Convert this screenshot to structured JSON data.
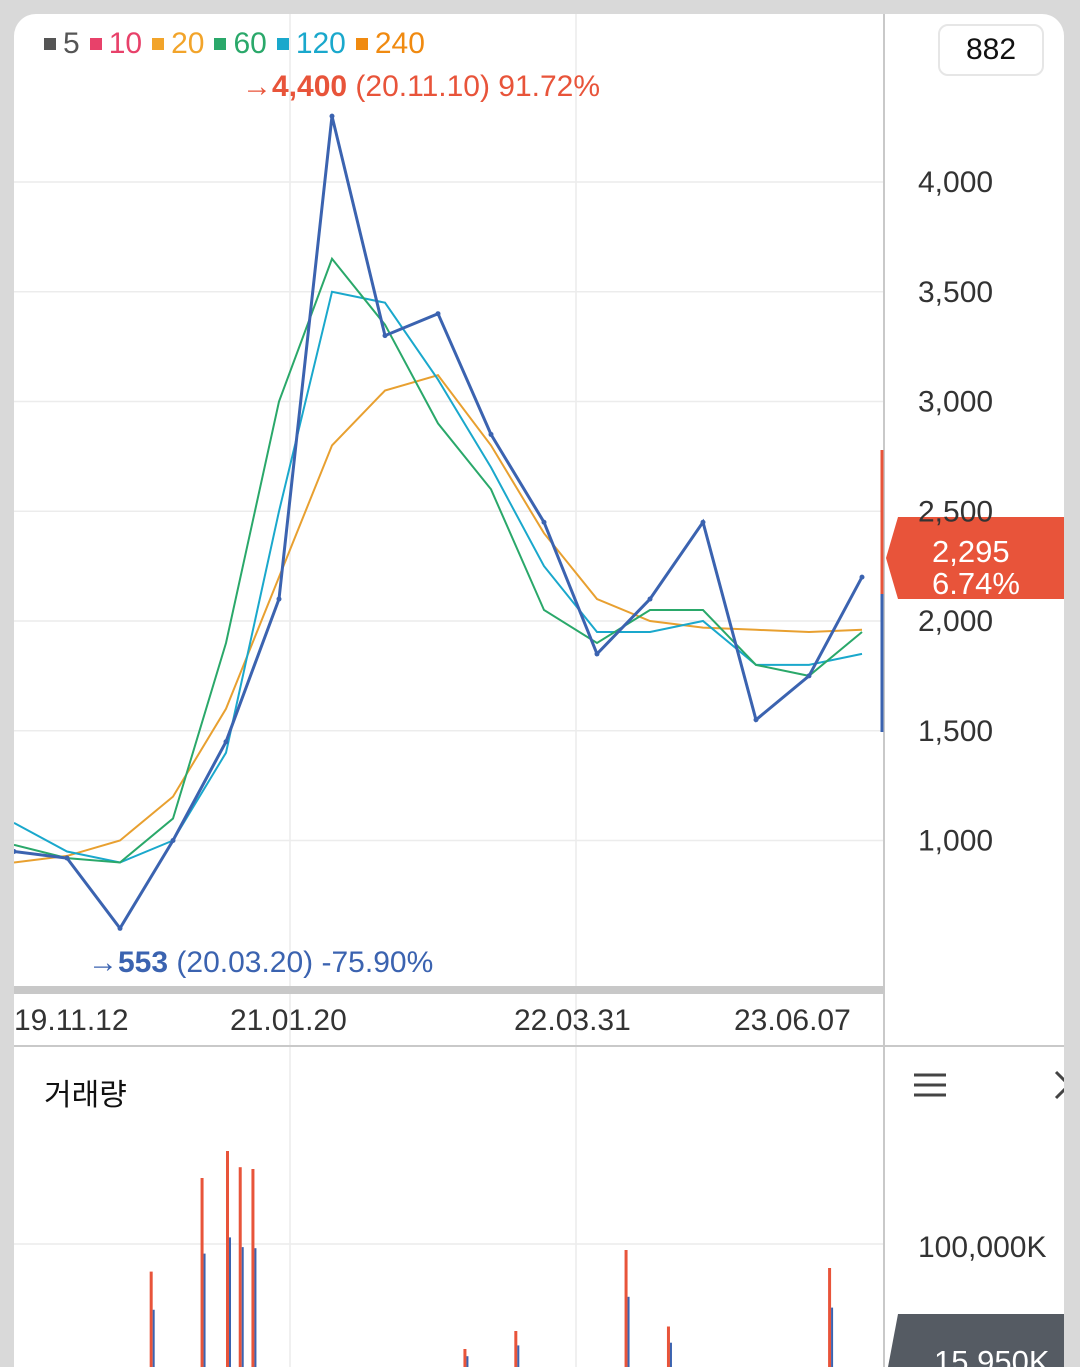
{
  "legend": [
    {
      "label": "5",
      "color": "#555555"
    },
    {
      "label": "10",
      "color": "#e8416a"
    },
    {
      "label": "20",
      "color": "#f2a42a"
    },
    {
      "label": "60",
      "color": "#2aa86a"
    },
    {
      "label": "120",
      "color": "#1aa8cc"
    },
    {
      "label": "240",
      "color": "#f08a10"
    }
  ],
  "count_box": "882",
  "high_marker": {
    "arrow": "→",
    "value": "4,400",
    "detail": "(20.11.10) 91.72%"
  },
  "low_marker": {
    "arrow": "→",
    "value": "553",
    "detail": "(20.03.20) -75.90%"
  },
  "current_price": {
    "price": "2,295",
    "change": "6.74%",
    "color": "#e8543a"
  },
  "volume_panel": {
    "title": "거래량",
    "axis_label": "100,000K",
    "current": "15,950K",
    "badge_color": "#555b63"
  },
  "chart_data": {
    "type": "line",
    "y_axis_ticks": [
      "4,000",
      "3,500",
      "3,000",
      "2,500",
      "2,000",
      "1,500",
      "1,000"
    ],
    "y_tick_values": [
      4000,
      3500,
      3000,
      2500,
      2000,
      1500,
      1000
    ],
    "x_axis_labels": [
      "19.11.12",
      "21.01.20",
      "22.03.31",
      "23.06.07"
    ],
    "grid": true,
    "series": [
      {
        "name": "240",
        "color": "#e8a030",
        "values": [
          900,
          930,
          1000,
          1200,
          1600,
          2200,
          2800,
          3050,
          3120,
          2800,
          2400,
          2100,
          2000,
          1970,
          1960,
          1950,
          1960
        ]
      },
      {
        "name": "120",
        "color": "#1aa8cc",
        "values": [
          1080,
          950,
          900,
          1000,
          1400,
          2500,
          3500,
          3450,
          3100,
          2700,
          2250,
          1950,
          1950,
          2000,
          1800,
          1800,
          1850
        ]
      },
      {
        "name": "60",
        "color": "#2aa86a",
        "values": [
          980,
          920,
          900,
          1100,
          1900,
          3000,
          3650,
          3350,
          2900,
          2600,
          2050,
          1900,
          2050,
          2050,
          1800,
          1750,
          1950
        ]
      },
      {
        "name": "price",
        "color": "#3b63b0",
        "values": [
          950,
          920,
          600,
          1000,
          1450,
          2100,
          4300,
          3300,
          3400,
          2850,
          2450,
          1850,
          2100,
          2450,
          1550,
          1750,
          2200
        ]
      }
    ],
    "volume_bars": [
      {
        "position": 0.16,
        "value": 106000
      },
      {
        "position": 0.22,
        "value": 210000
      },
      {
        "position": 0.25,
        "value": 240000
      },
      {
        "position": 0.265,
        "value": 222000
      },
      {
        "position": 0.28,
        "value": 220000
      },
      {
        "position": 0.53,
        "value": 20000
      },
      {
        "position": 0.59,
        "value": 40000
      },
      {
        "position": 0.72,
        "value": 130000
      },
      {
        "position": 0.77,
        "value": 45000
      },
      {
        "position": 0.96,
        "value": 110000
      }
    ]
  }
}
